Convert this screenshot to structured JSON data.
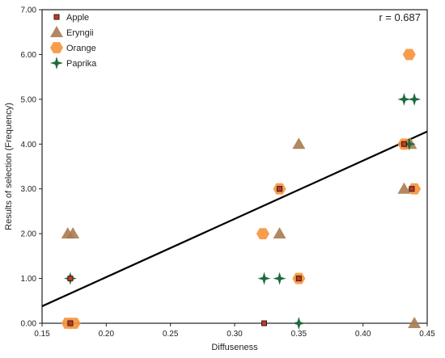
{
  "chart_data": {
    "type": "scatter",
    "xlabel": "Diffuseness",
    "ylabel": "Results of selection  (Frequency)",
    "xlim": [
      0.15,
      0.45
    ],
    "ylim": [
      0,
      7
    ],
    "xticks": [
      "0.15",
      "0.20",
      "0.25",
      "0.30",
      "0.35",
      "0.40",
      "0.45"
    ],
    "yticks": [
      "0.00",
      "1.00",
      "2.00",
      "3.00",
      "4.00",
      "5.00",
      "6.00",
      "7.00"
    ],
    "annotation": "r = 0.687",
    "legend_position": "top-left",
    "grid": false,
    "series": [
      {
        "name": "Apple",
        "marker": "square",
        "color": "#c0392b",
        "points": [
          [
            0.172,
            1
          ],
          [
            0.172,
            0
          ],
          [
            0.323,
            0
          ],
          [
            0.35,
            1
          ],
          [
            0.335,
            3
          ],
          [
            0.432,
            4
          ],
          [
            0.438,
            3
          ]
        ]
      },
      {
        "name": "Eryngii",
        "marker": "triangle",
        "color": "#a87b50",
        "points": [
          [
            0.17,
            2
          ],
          [
            0.174,
            2
          ],
          [
            0.335,
            2
          ],
          [
            0.35,
            4
          ],
          [
            0.432,
            3
          ],
          [
            0.437,
            4
          ],
          [
            0.44,
            0
          ]
        ]
      },
      {
        "name": "Orange",
        "marker": "hexagon",
        "color": "#f7923a",
        "points": [
          [
            0.17,
            0
          ],
          [
            0.175,
            0
          ],
          [
            0.322,
            2
          ],
          [
            0.335,
            3
          ],
          [
            0.35,
            1
          ],
          [
            0.432,
            4
          ],
          [
            0.436,
            6
          ],
          [
            0.44,
            3
          ]
        ]
      },
      {
        "name": "Paprika",
        "marker": "star",
        "color": "#1e6b3c",
        "points": [
          [
            0.172,
            1
          ],
          [
            0.323,
            1
          ],
          [
            0.335,
            1
          ],
          [
            0.35,
            0
          ],
          [
            0.432,
            5
          ],
          [
            0.44,
            5
          ],
          [
            0.436,
            4
          ]
        ]
      }
    ],
    "trendline": {
      "x": [
        0.15,
        0.45
      ],
      "y": [
        0.38,
        4.28
      ]
    }
  }
}
